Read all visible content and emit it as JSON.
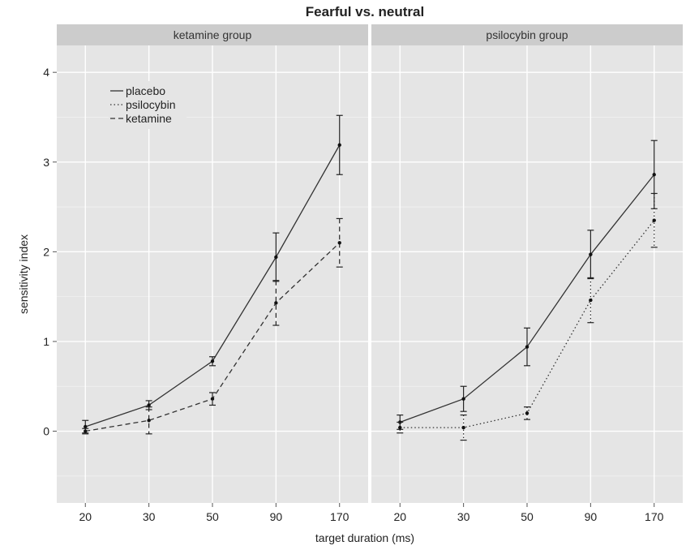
{
  "chart_data": {
    "type": "line",
    "title": "Fearful vs. neutral",
    "xlabel": "target duration (ms)",
    "ylabel": "sensitivity index",
    "categories": [
      "20",
      "30",
      "50",
      "90",
      "170"
    ],
    "ylim": [
      -0.8,
      4.3
    ],
    "yticks": [
      0,
      1,
      2,
      3,
      4
    ],
    "grid": true,
    "legend": {
      "placement": "top-left of first panel",
      "entries": [
        {
          "name": "placebo",
          "dash": "solid"
        },
        {
          "name": "psilocybin",
          "dash": "dotted"
        },
        {
          "name": "ketamine",
          "dash": "dashed"
        }
      ]
    },
    "panels": [
      {
        "label": "ketamine group",
        "series": [
          {
            "name": "placebo",
            "dash": "solid",
            "values": [
              0.05,
              0.29,
              0.78,
              1.94,
              3.19
            ],
            "err": [
              0.07,
              0.05,
              0.05,
              0.27,
              0.33
            ]
          },
          {
            "name": "ketamine",
            "dash": "dashed",
            "values": [
              0.0,
              0.12,
              0.36,
              1.43,
              2.1
            ],
            "err": [
              0.03,
              0.15,
              0.07,
              0.25,
              0.27
            ]
          }
        ]
      },
      {
        "label": "psilocybin group",
        "series": [
          {
            "name": "placebo",
            "dash": "solid",
            "values": [
              0.1,
              0.36,
              0.94,
              1.97,
              2.86
            ],
            "err": [
              0.08,
              0.14,
              0.21,
              0.27,
              0.38
            ]
          },
          {
            "name": "psilocybin",
            "dash": "dotted",
            "values": [
              0.04,
              0.04,
              0.2,
              1.46,
              2.35
            ],
            "err": [
              0.06,
              0.14,
              0.07,
              0.25,
              0.3
            ]
          }
        ]
      }
    ]
  }
}
